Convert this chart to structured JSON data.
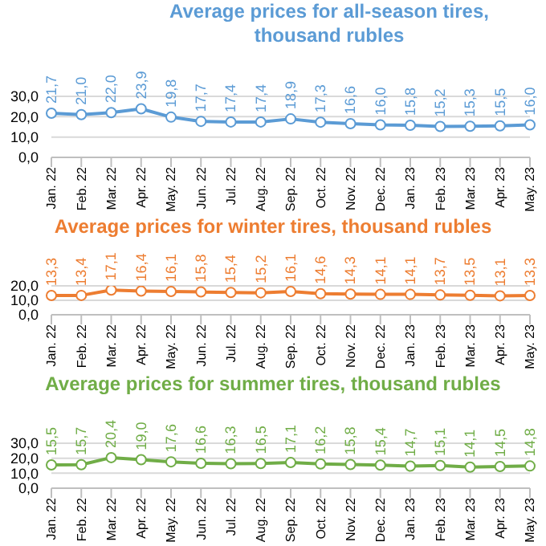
{
  "chart_data": [
    {
      "type": "line",
      "title": "Average prices for all-season tires, thousand rubles",
      "categories": [
        "Jan. 22",
        "Feb. 22",
        "Mar. 22",
        "Apr. 22",
        "May. 22",
        "Jun. 22",
        "Jul. 22",
        "Aug. 22",
        "Sep. 22",
        "Oct. 22",
        "Nov. 22",
        "Dec. 22",
        "Jan. 23",
        "Feb. 23",
        "Mar. 23",
        "Apr. 23",
        "May. 23"
      ],
      "series": [
        {
          "color": "#5b9bd5",
          "values": [
            21.7,
            21.0,
            22.0,
            23.9,
            19.8,
            17.7,
            17.4,
            17.4,
            18.9,
            17.3,
            16.6,
            16.0,
            15.8,
            15.2,
            15.3,
            15.5,
            16.0
          ],
          "value_labels": [
            "21,7",
            "21,0",
            "22,0",
            "23,9",
            "19,8",
            "17,7",
            "17,4",
            "17,4",
            "18,9",
            "17,3",
            "16,6",
            "16,0",
            "15,8",
            "15,2",
            "15,3",
            "15,5",
            "16,0"
          ]
        }
      ],
      "ylim": [
        0,
        30
      ],
      "yticks": [
        {
          "value": 0,
          "label": "0,0"
        },
        {
          "value": 10,
          "label": "10,0"
        },
        {
          "value": 20,
          "label": "20,0"
        },
        {
          "value": 30,
          "label": "30,0"
        }
      ],
      "grid": "y",
      "marker": "circle"
    },
    {
      "type": "line",
      "title": "Average prices for winter tires, thousand rubles",
      "categories": [
        "Jan. 22",
        "Feb. 22",
        "Mar. 22",
        "Apr. 22",
        "May. 22",
        "Jun. 22",
        "Jul. 22",
        "Aug. 22",
        "Sep. 22",
        "Oct. 22",
        "Nov. 22",
        "Dec. 22",
        "Jan. 23",
        "Feb. 23",
        "Mar. 23",
        "Apr. 23",
        "May. 23"
      ],
      "series": [
        {
          "color": "#ed7d31",
          "values": [
            13.3,
            13.4,
            17.1,
            16.4,
            16.1,
            15.8,
            15.4,
            15.2,
            16.1,
            14.6,
            14.3,
            14.1,
            14.1,
            13.7,
            13.5,
            13.1,
            13.3
          ],
          "value_labels": [
            "13,3",
            "13,4",
            "17,1",
            "16,4",
            "16,1",
            "15,8",
            "15,4",
            "15,2",
            "16,1",
            "14,6",
            "14,3",
            "14,1",
            "14,1",
            "13,7",
            "13,5",
            "13,1",
            "13,3"
          ]
        }
      ],
      "ylim": [
        0,
        20
      ],
      "yticks": [
        {
          "value": 0,
          "label": "0,0"
        },
        {
          "value": 10,
          "label": "10,0"
        },
        {
          "value": 20,
          "label": "20,0"
        }
      ],
      "grid": "y",
      "marker": "circle"
    },
    {
      "type": "line",
      "title": "Average prices for summer tires, thousand rubles",
      "categories": [
        "Jan. 22",
        "Feb. 22",
        "Mar. 22",
        "Apr. 22",
        "May. 22",
        "Jun. 22",
        "Jul. 22",
        "Aug. 22",
        "Sep. 22",
        "Oct. 22",
        "Nov. 22",
        "Dec. 22",
        "Jan. 23",
        "Feb. 23",
        "Mar. 23",
        "Apr. 23",
        "May. 23"
      ],
      "series": [
        {
          "color": "#70ad47",
          "values": [
            15.5,
            15.7,
            20.4,
            19.0,
            17.6,
            16.6,
            16.3,
            16.5,
            17.1,
            16.2,
            15.8,
            15.4,
            14.7,
            15.1,
            14.1,
            14.5,
            14.8
          ],
          "value_labels": [
            "15,5",
            "15,7",
            "20,4",
            "19,0",
            "17,6",
            "16,6",
            "16,3",
            "16,5",
            "17,1",
            "16,2",
            "15,8",
            "15,4",
            "14,7",
            "15,1",
            "14,1",
            "14,5",
            "14,8"
          ]
        }
      ],
      "ylim": [
        0,
        30
      ],
      "yticks": [
        {
          "value": 0,
          "label": "0,0"
        },
        {
          "value": 10,
          "label": "10,0"
        },
        {
          "value": 20,
          "label": "20,0"
        },
        {
          "value": 30,
          "label": "30,0"
        }
      ],
      "grid": "y",
      "marker": "circle"
    }
  ]
}
